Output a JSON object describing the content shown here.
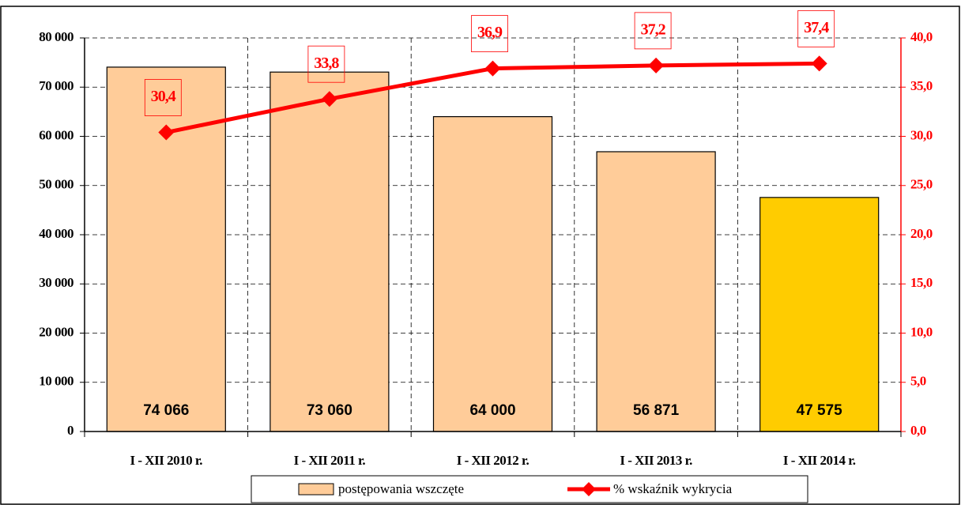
{
  "chart_data": {
    "type": "bar_line",
    "categories": [
      "I - XII 2010 r.",
      "I - XII 2011 r.",
      "I - XII 2012 r.",
      "I - XII 2013 r.",
      "I - XII 2014 r."
    ],
    "series": [
      {
        "name": "postępowania wszczęte",
        "colors": [
          "#ffcc99",
          "#ffcc99",
          "#ffcc99",
          "#ffcc99",
          "#ffcc00"
        ],
        "values": [
          74066,
          73060,
          64000,
          56871,
          47575
        ],
        "value_labels": [
          "74 066",
          "73 060",
          "64 000",
          "56 871",
          "47 575"
        ]
      },
      {
        "name": "% wskaźnik wykrycia",
        "color": "#ff0000",
        "axis": "y2",
        "values": [
          30.4,
          33.8,
          36.9,
          37.2,
          37.4
        ],
        "value_labels": [
          "30,4",
          "33,8",
          "36,9",
          "37,2",
          "37,4"
        ]
      }
    ],
    "ylim": [
      0,
      80000
    ],
    "yticks": [
      0,
      {
        "value": 10000,
        "label": "10 000"
      },
      {
        "value": 20000,
        "label": "20 000"
      },
      {
        "value": 30000,
        "label": "30 000"
      },
      {
        "value": 40000,
        "label": "40 000"
      },
      {
        "value": 50000,
        "label": "50 000"
      },
      {
        "value": 60000,
        "label": "60 000"
      },
      {
        "value": 70000,
        "label": "70 000"
      },
      {
        "value": 80000,
        "label": "80 000"
      }
    ],
    "y2lim": [
      0,
      40
    ],
    "y2ticks": [
      {
        "value": 0,
        "label": "0,0"
      },
      {
        "value": 5,
        "label": "5,0"
      },
      {
        "value": 10,
        "label": "10,0"
      },
      {
        "value": 15,
        "label": "15,0"
      },
      {
        "value": 20,
        "label": "20,0"
      },
      {
        "value": 25,
        "label": "25,0"
      },
      {
        "value": 30,
        "label": "30,0"
      },
      {
        "value": 35,
        "label": "35,0"
      },
      {
        "value": 40,
        "label": "40,0"
      }
    ],
    "grid": true,
    "legend": "bottom"
  }
}
